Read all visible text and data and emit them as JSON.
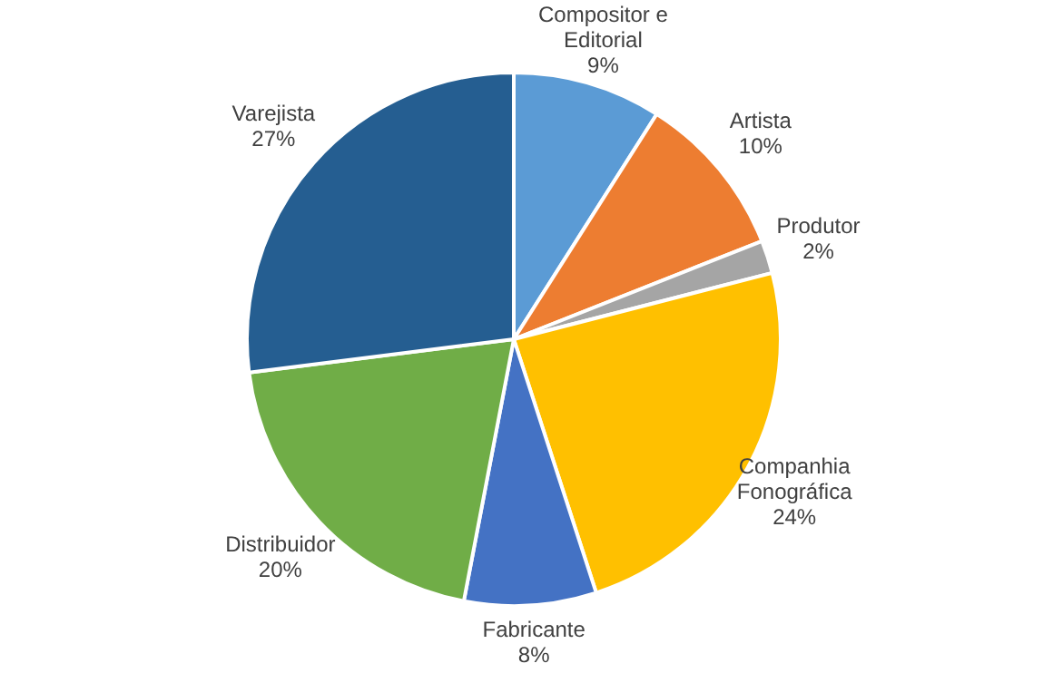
{
  "chart_data": {
    "type": "pie",
    "categories": [
      "Compositor e Editorial",
      "Artista",
      "Produtor",
      "Companhia Fonográfica",
      "Fabricante",
      "Distribuidor",
      "Varejista"
    ],
    "values": [
      9,
      10,
      2,
      24,
      8,
      20,
      27
    ],
    "value_labels": [
      "9%",
      "10%",
      "2%",
      "24%",
      "8%",
      "20%",
      "27%"
    ],
    "colors": [
      "#5b9bd5",
      "#ed7d31",
      "#a5a5a5",
      "#ffc000",
      "#4472c4",
      "#70ad47",
      "#255e91"
    ],
    "legend": false
  }
}
